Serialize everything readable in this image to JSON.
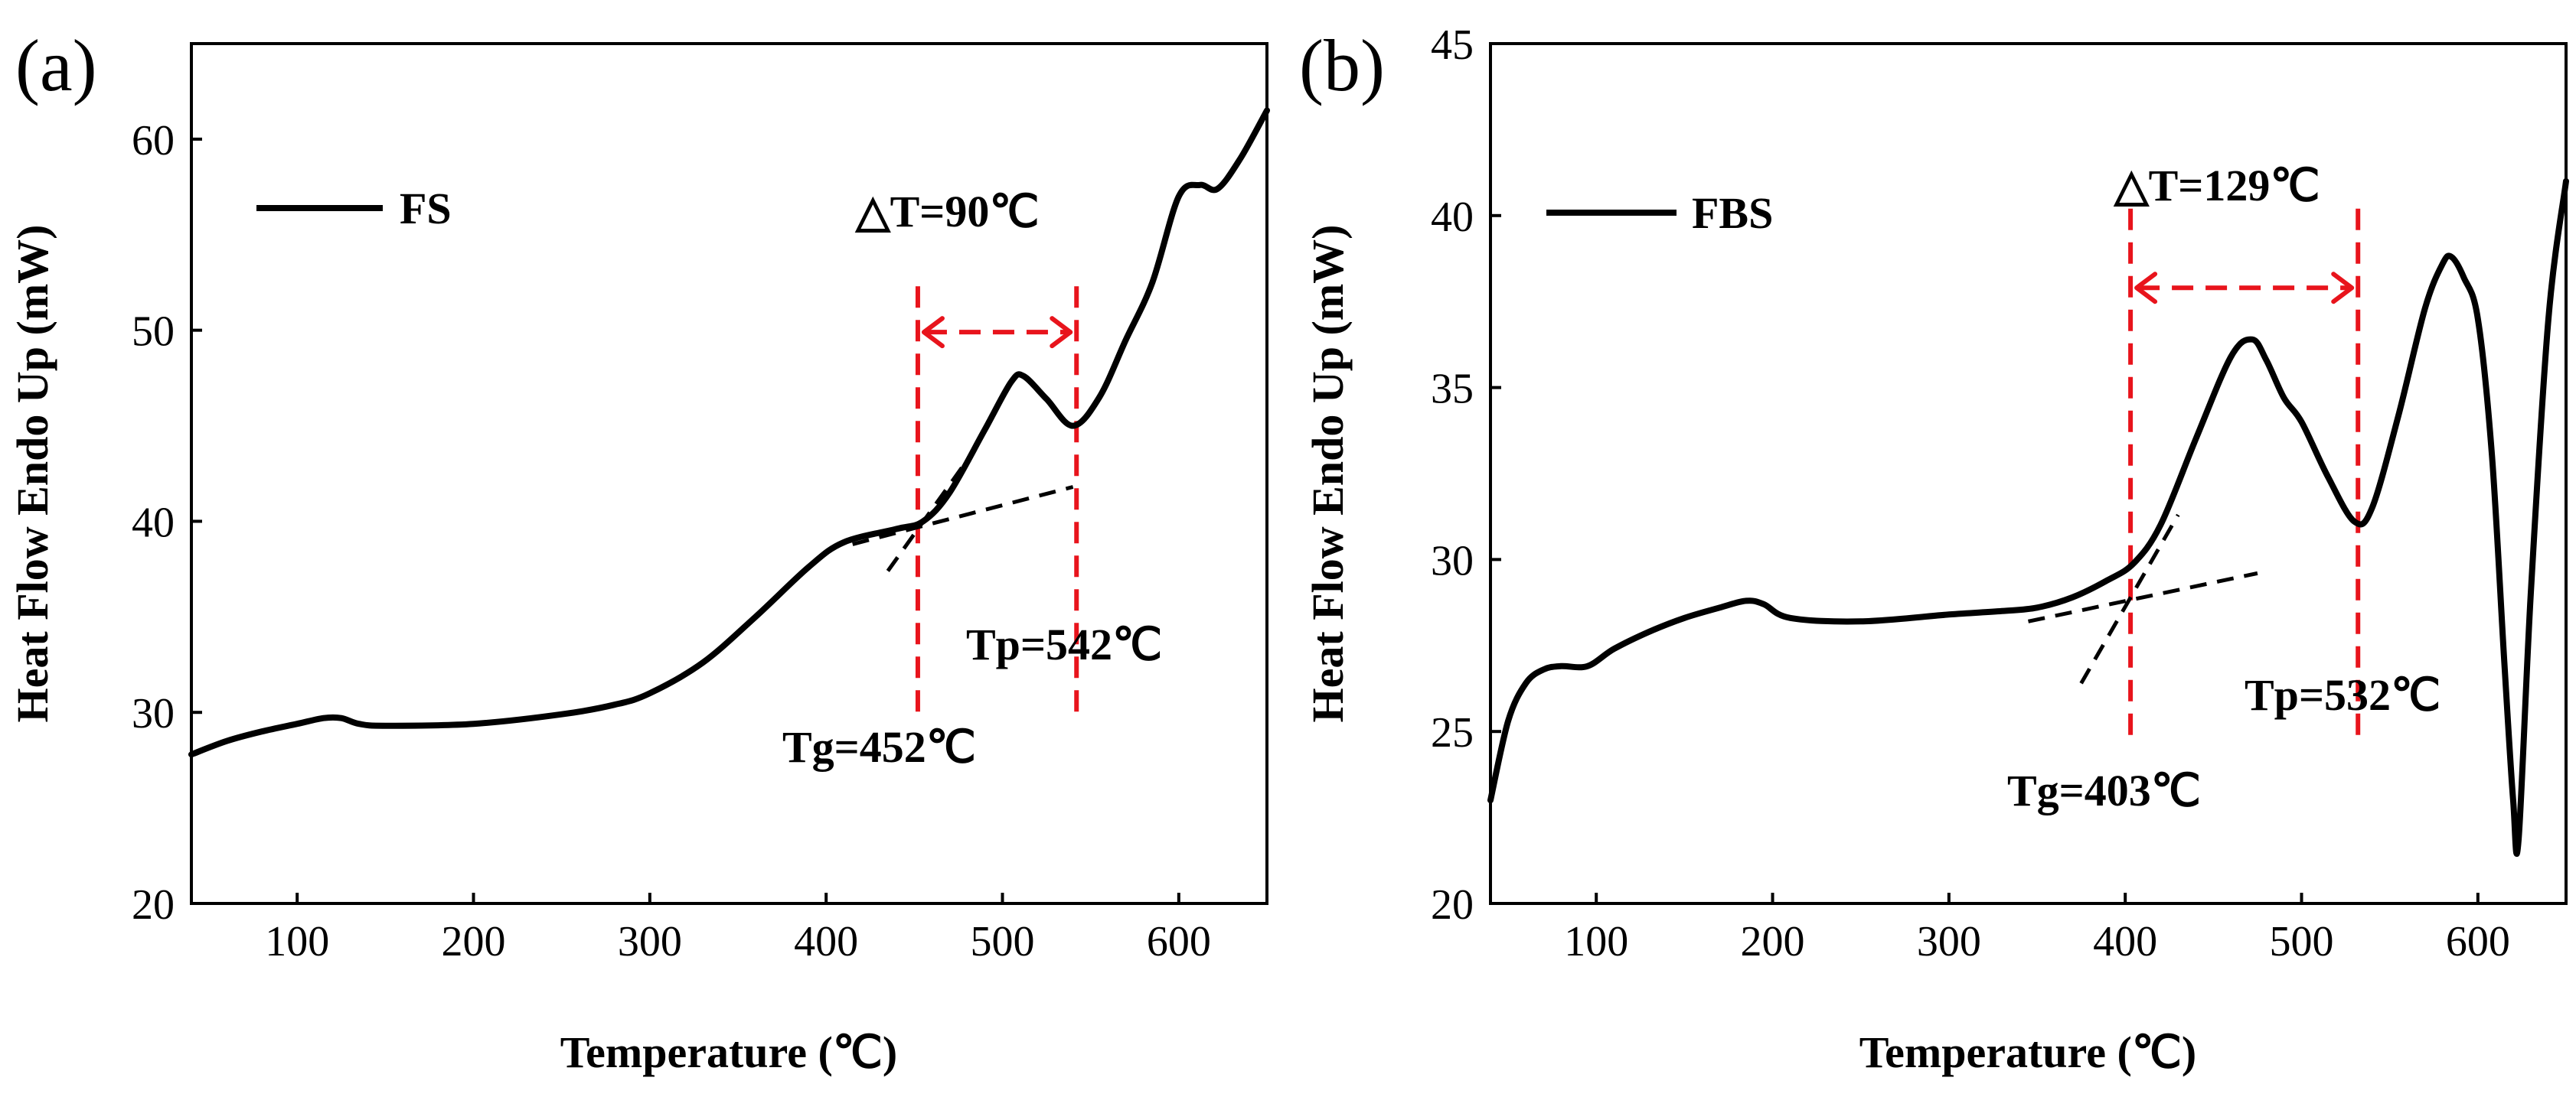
{
  "chart_data": [
    {
      "type": "line",
      "panel_label": "(a)",
      "xlabel": "Temperature (℃)",
      "ylabel": "Heat Flow Endo Up (mW)",
      "xlim": [
        40,
        650
      ],
      "ylim": [
        20,
        65
      ],
      "xticks": [
        100,
        200,
        300,
        400,
        500,
        600
      ],
      "yticks": [
        20,
        30,
        40,
        50,
        60
      ],
      "grid": false,
      "legend": {
        "position": "top-left",
        "entries": [
          "FS"
        ]
      },
      "series": [
        {
          "name": "FS",
          "x": [
            40,
            60,
            80,
            100,
            115,
            125,
            135,
            150,
            200,
            250,
            280,
            300,
            330,
            360,
            390,
            410,
            440,
            455,
            470,
            490,
            505,
            512,
            525,
            540,
            555,
            570,
            585,
            600,
            612,
            622,
            635,
            650
          ],
          "y": [
            27.8,
            28.5,
            29.0,
            29.4,
            29.7,
            29.7,
            29.4,
            29.3,
            29.4,
            29.9,
            30.4,
            31.0,
            32.6,
            35.0,
            37.6,
            38.9,
            39.6,
            40.0,
            41.5,
            44.8,
            47.3,
            47.6,
            46.4,
            45.0,
            46.5,
            49.5,
            52.5,
            57.0,
            57.6,
            57.4,
            59.0,
            61.5
          ]
        }
      ],
      "tangents": [
        {
          "x": [
            415,
            540
          ],
          "y": [
            38.8,
            41.8
          ]
        },
        {
          "x": [
            435,
            480
          ],
          "y": [
            37.4,
            43.2
          ]
        }
      ],
      "markers": {
        "Tg": 452,
        "Tp": 542,
        "line_top": 52.3,
        "line_bottom": 30.0,
        "arrow_y": 49.9
      },
      "annotations": [
        "△T=90℃",
        "Tg=452℃",
        "Tp=542℃"
      ]
    },
    {
      "type": "line",
      "panel_label": "(b)",
      "xlabel": "Temperature (℃)",
      "ylabel": "Heat Flow Endo Up (mW)",
      "xlim": [
        40,
        650
      ],
      "ylim": [
        20,
        45
      ],
      "xticks": [
        100,
        200,
        300,
        400,
        500,
        600
      ],
      "yticks": [
        20,
        25,
        30,
        35,
        40,
        45
      ],
      "grid": false,
      "legend": {
        "position": "top-left",
        "entries": [
          "FBS"
        ]
      },
      "series": [
        {
          "name": "FBS",
          "x": [
            40,
            50,
            60,
            70,
            80,
            95,
            110,
            130,
            150,
            170,
            185,
            195,
            210,
            250,
            300,
            330,
            350,
            370,
            390,
            405,
            420,
            440,
            460,
            472,
            480,
            490,
            500,
            515,
            530,
            540,
            555,
            570,
            580,
            585,
            592,
            600,
            608,
            615,
            620,
            623,
            630,
            640,
            650
          ],
          "y": [
            23.0,
            25.3,
            26.4,
            26.8,
            26.9,
            26.9,
            27.4,
            27.9,
            28.3,
            28.6,
            28.8,
            28.7,
            28.3,
            28.2,
            28.4,
            28.5,
            28.6,
            28.9,
            29.4,
            29.9,
            31.0,
            33.5,
            35.9,
            36.4,
            35.8,
            34.7,
            34.0,
            32.4,
            31.1,
            31.5,
            34.2,
            37.3,
            38.6,
            38.8,
            38.2,
            37.0,
            33.0,
            27.0,
            23.0,
            21.8,
            29.0,
            37.0,
            41.0
          ]
        }
      ],
      "tangents": [
        {
          "x": [
            345,
            475
          ],
          "y": [
            28.2,
            29.6
          ]
        },
        {
          "x": [
            375,
            430
          ],
          "y": [
            26.4,
            31.3
          ]
        }
      ],
      "markers": {
        "Tg": 403,
        "Tp": 532,
        "line_top": 40.2,
        "line_bottom": 24.6,
        "arrow_y": 37.9
      },
      "annotations": [
        "△T=129℃",
        "Tg=403℃",
        "Tp=532℃"
      ]
    }
  ]
}
